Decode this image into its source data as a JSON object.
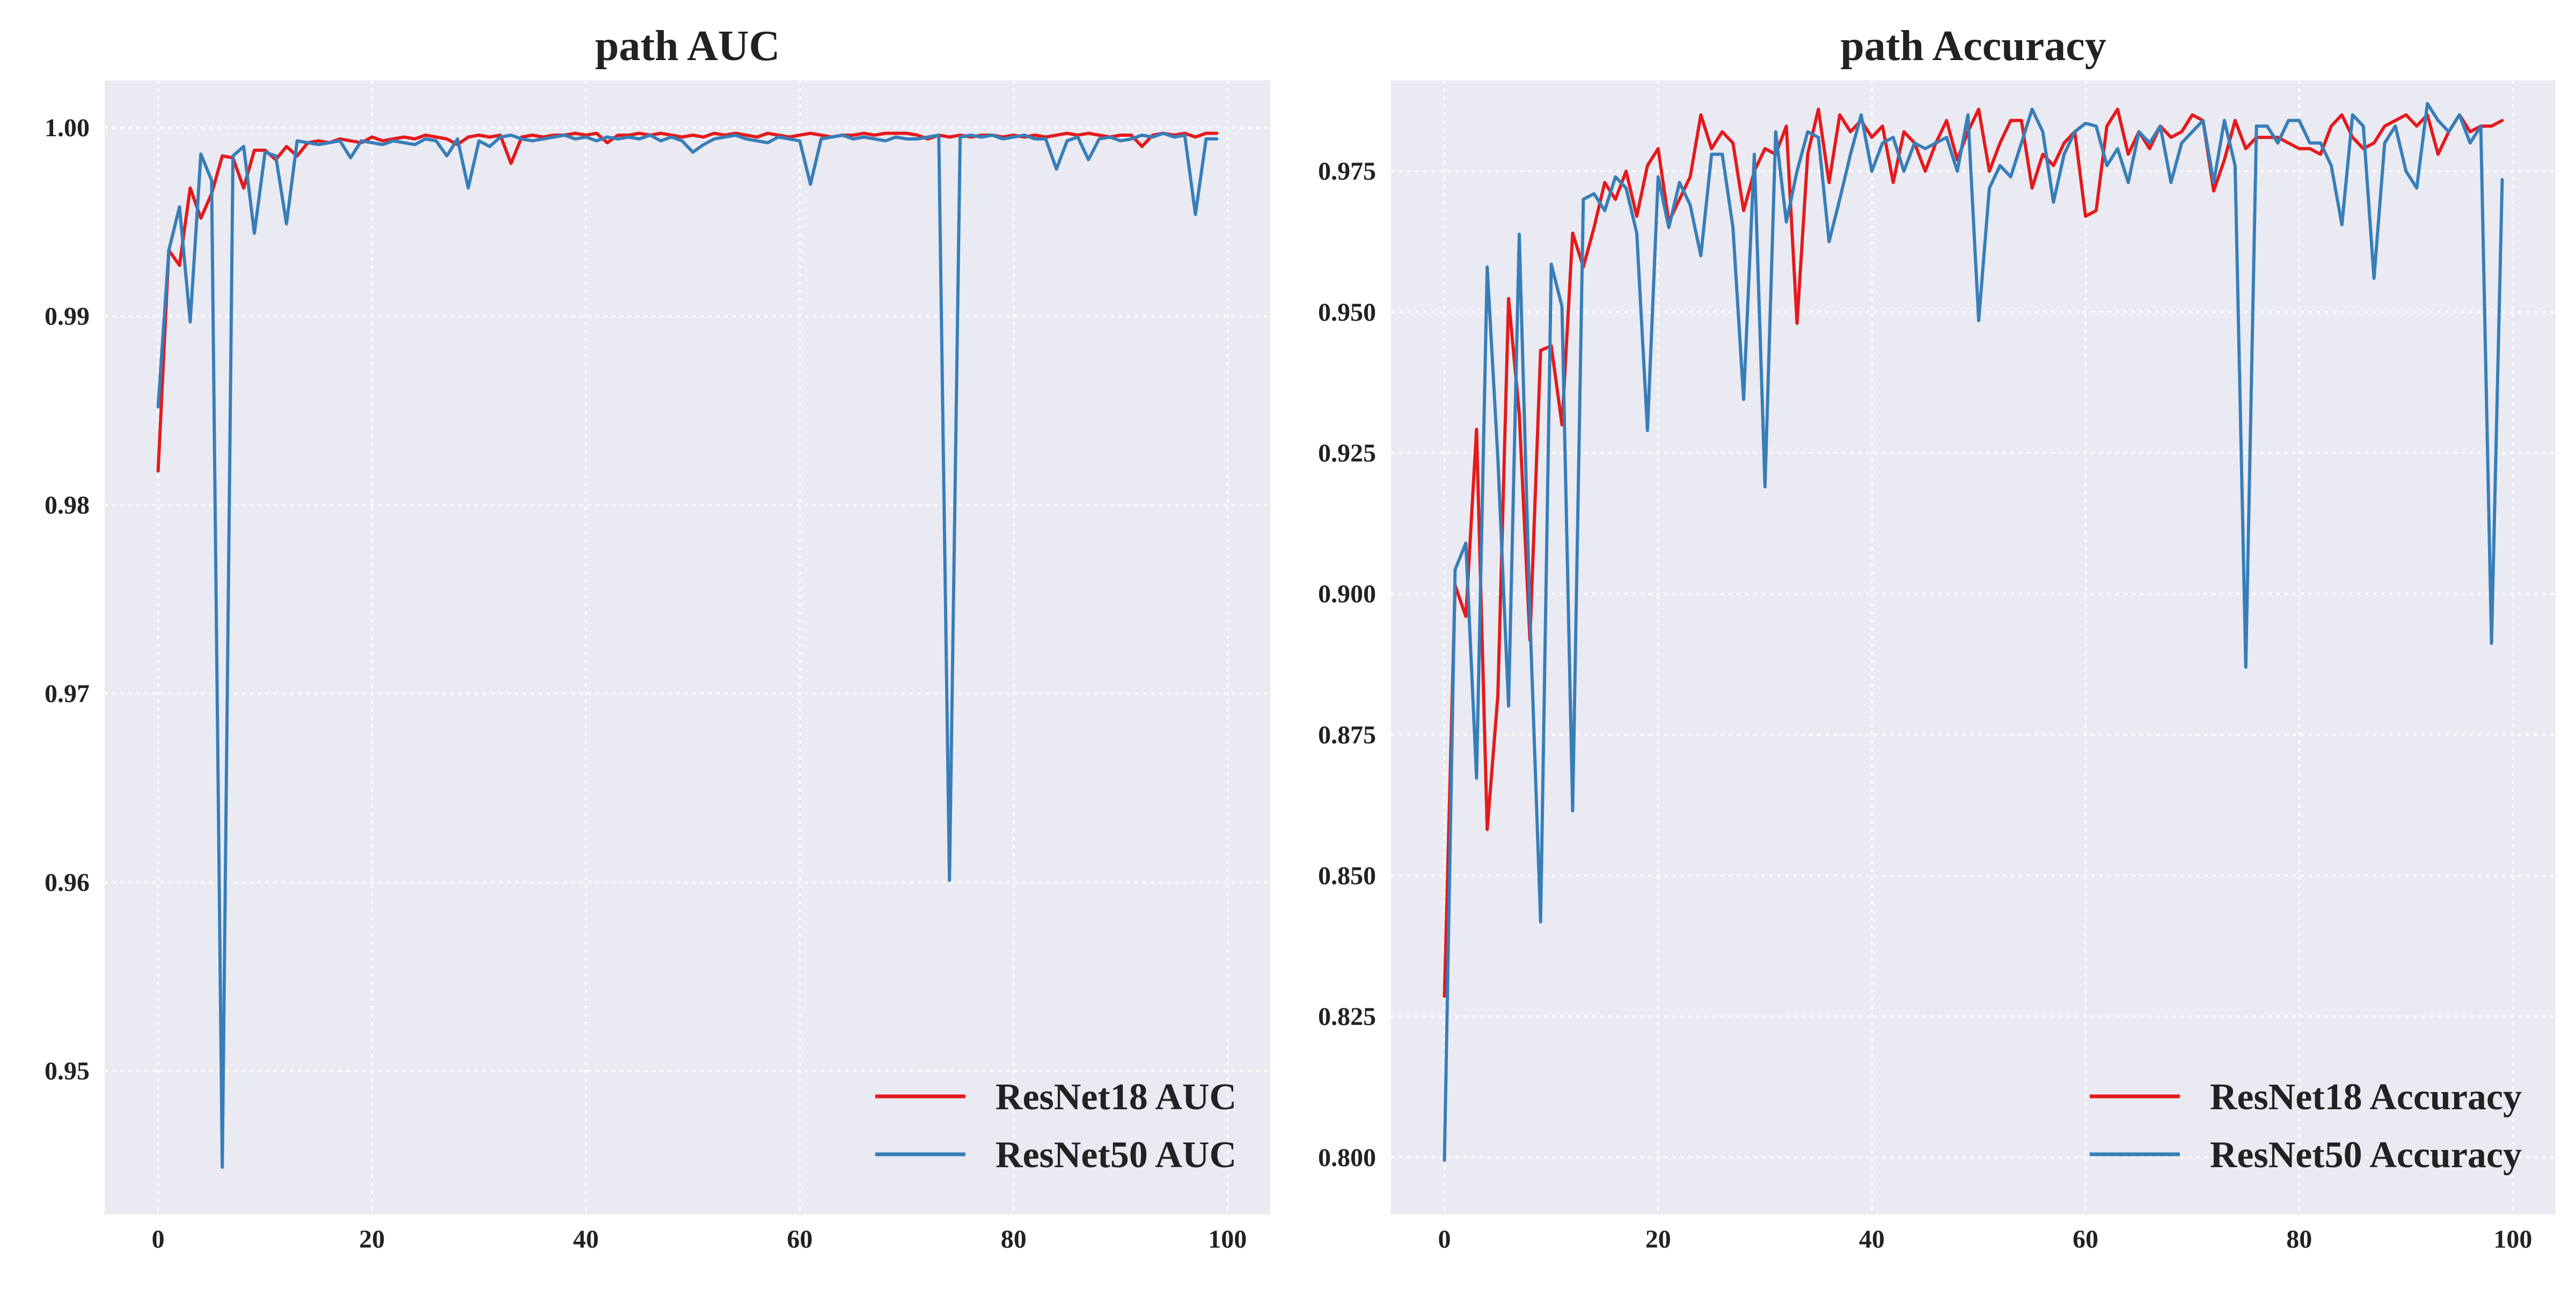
{
  "chart_data": [
    {
      "type": "line",
      "title": "path AUC",
      "xlabel": "",
      "ylabel": "",
      "xlim": [
        -5,
        104
      ],
      "ylim": [
        0.9424,
        1.0025
      ],
      "xticks": [
        0,
        20,
        40,
        60,
        80,
        100
      ],
      "yticks": [
        0.95,
        0.96,
        0.97,
        0.98,
        0.99,
        1.0
      ],
      "ytick_labels": [
        "0.95",
        "0.96",
        "0.97",
        "0.98",
        "0.99",
        "1.00"
      ],
      "grid": true,
      "legend_position": "lower-right",
      "series": [
        {
          "name": "ResNet18 AUC",
          "color": "#e41a1c",
          "values": [
            0.9818,
            0.9935,
            0.9927,
            0.9968,
            0.9952,
            0.9965,
            0.9985,
            0.9984,
            0.9968,
            0.9988,
            0.9988,
            0.9983,
            0.999,
            0.9985,
            0.9992,
            0.9993,
            0.9992,
            0.9994,
            0.9993,
            0.9992,
            0.9995,
            0.9993,
            0.9994,
            0.9995,
            0.9994,
            0.9996,
            0.9995,
            0.9994,
            0.9991,
            0.9995,
            0.9996,
            0.9995,
            0.9996,
            0.9981,
            0.9995,
            0.9996,
            0.9995,
            0.9996,
            0.9996,
            0.9997,
            0.9996,
            0.9997,
            0.9992,
            0.9996,
            0.9996,
            0.9997,
            0.9996,
            0.9997,
            0.9996,
            0.9995,
            0.9996,
            0.9995,
            0.9997,
            0.9996,
            0.9997,
            0.9996,
            0.9995,
            0.9997,
            0.9996,
            0.9995,
            0.9996,
            0.9997,
            0.9996,
            0.9995,
            0.9996,
            0.9996,
            0.9997,
            0.9996,
            0.9997,
            0.9997,
            0.9997,
            0.9996,
            0.9994,
            0.9996,
            0.9995,
            0.9996,
            0.9995,
            0.9996,
            0.9996,
            0.9995,
            0.9996,
            0.9995,
            0.9996,
            0.9995,
            0.9996,
            0.9997,
            0.9996,
            0.9997,
            0.9996,
            0.9995,
            0.9996,
            0.9996,
            0.999,
            0.9996,
            0.9997,
            0.9996,
            0.9997,
            0.9995,
            0.9997,
            0.9997
          ]
        },
        {
          "name": "ResNet50 AUC",
          "color": "#377eb8",
          "values": [
            0.9852,
            0.9935,
            0.9958,
            0.9897,
            0.9986,
            0.9972,
            0.9449,
            0.9985,
            0.999,
            0.9944,
            0.9987,
            0.9985,
            0.9949,
            0.9993,
            0.9992,
            0.9991,
            0.9992,
            0.9993,
            0.9984,
            0.9993,
            0.9992,
            0.9991,
            0.9993,
            0.9992,
            0.9991,
            0.9994,
            0.9993,
            0.9985,
            0.9994,
            0.9968,
            0.9993,
            0.999,
            0.9995,
            0.9996,
            0.9994,
            0.9993,
            0.9994,
            0.9995,
            0.9996,
            0.9994,
            0.9995,
            0.9993,
            0.9995,
            0.9994,
            0.9995,
            0.9994,
            0.9996,
            0.9993,
            0.9995,
            0.9993,
            0.9987,
            0.9991,
            0.9994,
            0.9995,
            0.9996,
            0.9994,
            0.9993,
            0.9992,
            0.9995,
            0.9994,
            0.9993,
            0.997,
            0.9994,
            0.9995,
            0.9996,
            0.9994,
            0.9995,
            0.9994,
            0.9993,
            0.9995,
            0.9994,
            0.9994,
            0.9995,
            0.9996,
            0.9601,
            0.9995,
            0.9996,
            0.9995,
            0.9996,
            0.9994,
            0.9995,
            0.9996,
            0.9994,
            0.9994,
            0.9978,
            0.9993,
            0.9995,
            0.9983,
            0.9994,
            0.9995,
            0.9993,
            0.9994,
            0.9996,
            0.9995,
            0.9997,
            0.9995,
            0.9996,
            0.9954,
            0.9994,
            0.9994
          ]
        }
      ]
    },
    {
      "type": "line",
      "title": "path Accuracy",
      "xlabel": "",
      "ylabel": "",
      "xlim": [
        -5,
        104
      ],
      "ylim": [
        0.7899,
        0.9911
      ],
      "xticks": [
        0,
        20,
        40,
        60,
        80,
        100
      ],
      "yticks": [
        0.8,
        0.825,
        0.85,
        0.875,
        0.9,
        0.925,
        0.95,
        0.975
      ],
      "ytick_labels": [
        "0.800",
        "0.825",
        "0.850",
        "0.875",
        "0.900",
        "0.925",
        "0.950",
        "0.975"
      ],
      "grid": true,
      "legend_position": "lower-right",
      "series": [
        {
          "name": "ResNet18 Accuracy",
          "color": "#e41a1c",
          "values": [
            0.8286,
            0.9015,
            0.896,
            0.9292,
            0.8582,
            0.882,
            0.9524,
            0.932,
            0.8918,
            0.9432,
            0.944,
            0.93,
            0.964,
            0.958,
            0.965,
            0.973,
            0.97,
            0.975,
            0.967,
            0.976,
            0.979,
            0.966,
            0.97,
            0.974,
            0.985,
            0.979,
            0.982,
            0.98,
            0.968,
            0.975,
            0.979,
            0.978,
            0.983,
            0.948,
            0.978,
            0.986,
            0.973,
            0.985,
            0.982,
            0.984,
            0.981,
            0.983,
            0.973,
            0.982,
            0.98,
            0.975,
            0.98,
            0.984,
            0.977,
            0.982,
            0.986,
            0.975,
            0.98,
            0.984,
            0.984,
            0.972,
            0.978,
            0.976,
            0.98,
            0.982,
            0.967,
            0.968,
            0.983,
            0.986,
            0.978,
            0.982,
            0.979,
            0.983,
            0.981,
            0.982,
            0.985,
            0.984,
            0.9715,
            0.977,
            0.984,
            0.979,
            0.981,
            0.981,
            0.981,
            0.98,
            0.979,
            0.979,
            0.978,
            0.983,
            0.985,
            0.981,
            0.979,
            0.98,
            0.983,
            0.984,
            0.985,
            0.983,
            0.985,
            0.978,
            0.982,
            0.985,
            0.982,
            0.983,
            0.983,
            0.984
          ]
        },
        {
          "name": "ResNet50 Accuracy",
          "color": "#377eb8",
          "values": [
            0.7995,
            0.9043,
            0.909,
            0.8673,
            0.958,
            0.924,
            0.8801,
            0.9638,
            0.896,
            0.8418,
            0.9585,
            0.951,
            0.8615,
            0.97,
            0.971,
            0.968,
            0.974,
            0.972,
            0.964,
            0.929,
            0.974,
            0.965,
            0.973,
            0.969,
            0.96,
            0.978,
            0.978,
            0.965,
            0.9345,
            0.978,
            0.919,
            0.982,
            0.966,
            0.975,
            0.982,
            0.981,
            0.9625,
            0.97,
            0.978,
            0.985,
            0.975,
            0.98,
            0.981,
            0.975,
            0.98,
            0.979,
            0.98,
            0.981,
            0.975,
            0.985,
            0.9485,
            0.972,
            0.976,
            0.974,
            0.98,
            0.986,
            0.982,
            0.9695,
            0.978,
            0.982,
            0.9835,
            0.983,
            0.976,
            0.979,
            0.973,
            0.982,
            0.98,
            0.983,
            0.973,
            0.98,
            0.982,
            0.984,
            0.973,
            0.984,
            0.976,
            0.887,
            0.983,
            0.983,
            0.98,
            0.984,
            0.984,
            0.98,
            0.98,
            0.976,
            0.9655,
            0.985,
            0.983,
            0.956,
            0.98,
            0.983,
            0.975,
            0.972,
            0.987,
            0.984,
            0.982,
            0.985,
            0.98,
            0.983,
            0.8912,
            0.9735
          ]
        }
      ]
    }
  ]
}
